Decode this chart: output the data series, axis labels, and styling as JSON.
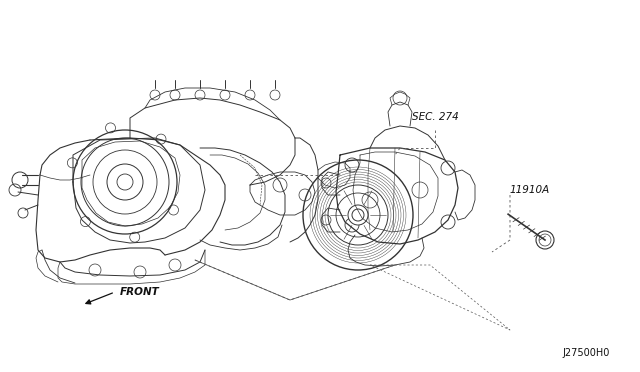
{
  "bg_color": "#ffffff",
  "line_color": "#333333",
  "dash_color": "#555555",
  "text_color": "#111111",
  "labels": {
    "sec274": "SEC. 274",
    "part_num": "11910A",
    "front": "FRONT",
    "diagram_id": "J27500H0"
  },
  "figsize": [
    6.4,
    3.72
  ],
  "dpi": 100
}
